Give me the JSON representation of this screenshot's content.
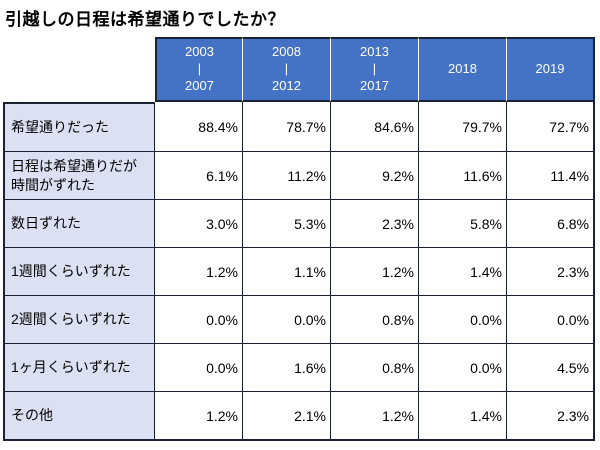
{
  "title": "引越しの日程は希望通りでしたか？",
  "colors": {
    "header_bg": "#4472C4",
    "header_text": "#FFFFFF",
    "label_bg": "#DBE1F2",
    "border": "#1A2333",
    "body_text": "#000000"
  },
  "table": {
    "columns": [
      "2003\n|\n2007",
      "2008\n|\n2012",
      "2013\n|\n2017",
      "2018",
      "2019"
    ],
    "rows": [
      {
        "label": "希望通りだった",
        "values": [
          "88.4%",
          "78.7%",
          "84.6%",
          "79.7%",
          "72.7%"
        ]
      },
      {
        "label": "日程は希望通りだが時間がずれた",
        "values": [
          "6.1%",
          "11.2%",
          "9.2%",
          "11.6%",
          "11.4%"
        ]
      },
      {
        "label": "数日ずれた",
        "values": [
          "3.0%",
          "5.3%",
          "2.3%",
          "5.8%",
          "6.8%"
        ]
      },
      {
        "label": "1週間くらいずれた",
        "values": [
          "1.2%",
          "1.1%",
          "1.2%",
          "1.4%",
          "2.3%"
        ]
      },
      {
        "label": "2週間くらいずれた",
        "values": [
          "0.0%",
          "0.0%",
          "0.8%",
          "0.0%",
          "0.0%"
        ]
      },
      {
        "label": "1ヶ月くらいずれた",
        "values": [
          "0.0%",
          "1.6%",
          "0.8%",
          "0.0%",
          "4.5%"
        ]
      },
      {
        "label": "その他",
        "values": [
          "1.2%",
          "2.1%",
          "1.2%",
          "1.4%",
          "2.3%"
        ]
      }
    ]
  },
  "chart_data": {
    "type": "table",
    "title": "引越しの日程は希望通りでしたか？",
    "unit": "%",
    "categories": [
      "2003-2007",
      "2008-2012",
      "2013-2017",
      "2018",
      "2019"
    ],
    "series": [
      {
        "name": "希望通りだった",
        "values": [
          88.4,
          78.7,
          84.6,
          79.7,
          72.7
        ]
      },
      {
        "name": "日程は希望通りだが時間がずれた",
        "values": [
          6.1,
          11.2,
          9.2,
          11.6,
          11.4
        ]
      },
      {
        "name": "数日ずれた",
        "values": [
          3.0,
          5.3,
          2.3,
          5.8,
          6.8
        ]
      },
      {
        "name": "1週間くらいずれた",
        "values": [
          1.2,
          1.1,
          1.2,
          1.4,
          2.3
        ]
      },
      {
        "name": "2週間くらいずれた",
        "values": [
          0.0,
          0.0,
          0.8,
          0.0,
          0.0
        ]
      },
      {
        "name": "1ヶ月くらいずれた",
        "values": [
          0.0,
          1.6,
          0.8,
          0.0,
          4.5
        ]
      },
      {
        "name": "その他",
        "values": [
          1.2,
          2.1,
          1.2,
          1.4,
          2.3
        ]
      }
    ]
  }
}
